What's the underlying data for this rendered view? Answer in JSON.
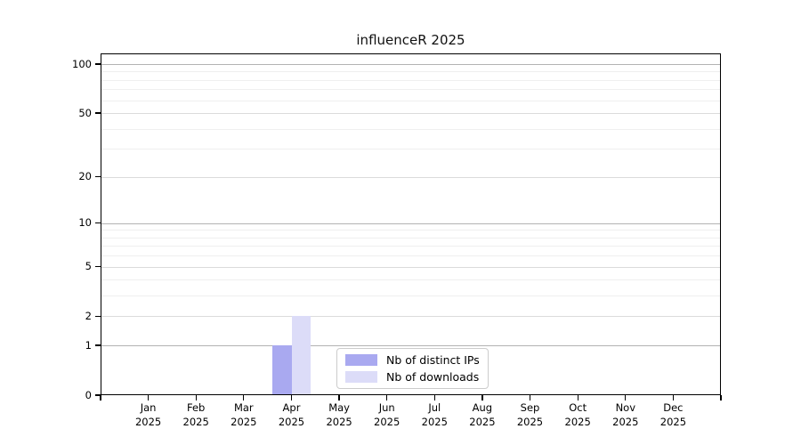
{
  "title": "influenceR 2025",
  "legend": {
    "items": [
      {
        "label": "Nb of distinct IPs",
        "color": "#a9a9f0"
      },
      {
        "label": "Nb of downloads",
        "color": "#dcdcf8"
      }
    ]
  },
  "chart_data": {
    "type": "bar",
    "title": "influenceR 2025",
    "categories": [
      "Jan 2025",
      "Feb 2025",
      "Mar 2025",
      "Apr 2025",
      "May 2025",
      "Jun 2025",
      "Jul 2025",
      "Aug 2025",
      "Sep 2025",
      "Oct 2025",
      "Nov 2025",
      "Dec 2025"
    ],
    "series": [
      {
        "name": "Nb of distinct IPs",
        "color": "#a9a9f0",
        "values": [
          0,
          0,
          0,
          1,
          0,
          0,
          0,
          0,
          0,
          0,
          0,
          0
        ]
      },
      {
        "name": "Nb of downloads",
        "color": "#dcdcf8",
        "values": [
          0,
          0,
          0,
          2,
          0,
          0,
          0,
          0,
          0,
          0,
          0,
          0
        ]
      }
    ],
    "xlabel": "",
    "ylabel": "",
    "yscale": "log1p",
    "yticks": [
      0,
      1,
      2,
      5,
      10,
      20,
      50,
      100
    ],
    "minor_yticks": [
      3,
      4,
      6,
      7,
      8,
      9,
      30,
      40,
      60,
      70,
      80,
      90
    ],
    "ylim": [
      0,
      116
    ],
    "grid": true,
    "legend_position": "lower-center",
    "decade_gridlines": [
      1,
      10,
      100
    ]
  },
  "colors": {
    "background": "#ffffff",
    "axis": "#000000",
    "gridline_decade": "#b3b3b3",
    "gridline_major": "#dbdbdb",
    "gridline_minor": "#efefef",
    "legend_border": "#cccccc"
  }
}
